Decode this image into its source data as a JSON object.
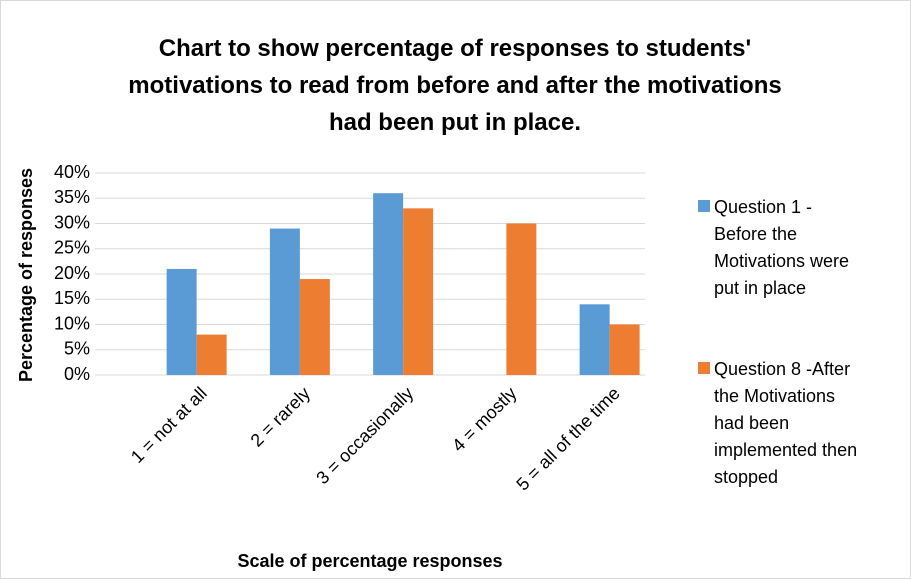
{
  "chart_data": {
    "type": "bar",
    "title": "Chart to show percentage of responses to students' motivations to read from before and after the motivations had been put in place.",
    "x_label": "Scale of percentage responses",
    "y_label": "Percentage of responses",
    "categories": [
      "1 = not at all",
      "2 = rarely",
      "3 = occasionally",
      "4 = mostly",
      "5 = all of the time"
    ],
    "series": [
      {
        "name": "Question 1 - Before the Motivations were put in place",
        "color": "#5b9bd5",
        "values": [
          21,
          29,
          36,
          0,
          14
        ]
      },
      {
        "name": "Question 8 -After the Motivations had been implemented then stopped",
        "color": "#ed7d31",
        "values": [
          8,
          19,
          33,
          30,
          10
        ]
      }
    ],
    "ylim": [
      0,
      40
    ],
    "yticks": [
      {
        "value": 0,
        "label": "0%"
      },
      {
        "value": 5,
        "label": "5%"
      },
      {
        "value": 10,
        "label": "10%"
      },
      {
        "value": 15,
        "label": "15%"
      },
      {
        "value": 20,
        "label": "20%"
      },
      {
        "value": 25,
        "label": "25%"
      },
      {
        "value": 30,
        "label": "30%"
      },
      {
        "value": 35,
        "label": "35%"
      },
      {
        "value": 40,
        "label": "40%"
      }
    ],
    "grid": true,
    "legend": "right"
  }
}
